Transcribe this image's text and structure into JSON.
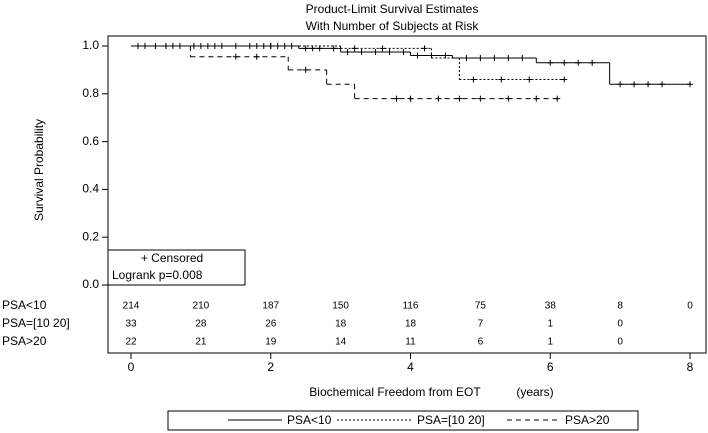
{
  "chart_data": {
    "type": "survival-step",
    "title": "Product-Limit Survival Estimates",
    "subtitle": "With Number of Subjects at Risk",
    "y_label": "Survival Probability",
    "x_label": "Biochemical Freedom from EOT",
    "x_unit": "(years)",
    "xlim": [
      0,
      8
    ],
    "xticks": [
      0,
      2,
      4,
      6,
      8
    ],
    "ylim": [
      0,
      1
    ],
    "yticks": [
      {
        "value": 0,
        "label": "0.0"
      },
      {
        "value": 0.2,
        "label": "0.2"
      },
      {
        "value": 0.4,
        "label": "0.4"
      },
      {
        "value": 0.6,
        "label": "0.6"
      },
      {
        "value": 0.8,
        "label": "0.8"
      },
      {
        "value": 1,
        "label": "1.0"
      }
    ],
    "censor_note": "+ Censored",
    "logrank": "Logrank p=0.008",
    "series": [
      {
        "name": "PSA<10",
        "color": "#000000",
        "style": "solid",
        "x": [
          0,
          2.4,
          3.0,
          4.0,
          4.6,
          5.8,
          6.85
        ],
        "values": [
          1.0,
          0.99,
          0.975,
          0.96,
          0.95,
          0.93,
          0.84
        ],
        "censored": [
          0.1,
          0.2,
          0.35,
          0.5,
          0.7,
          0.9,
          1.0,
          1.1,
          1.3,
          1.5,
          1.7,
          1.8,
          1.9,
          2.0,
          2.1,
          2.2,
          2.3,
          2.5,
          2.6,
          2.7,
          2.9,
          3.1,
          3.3,
          3.5,
          3.7,
          3.9,
          4.1,
          4.3,
          4.5,
          4.8,
          5.0,
          5.2,
          5.4,
          5.6,
          6.0,
          6.2,
          6.4,
          6.6,
          7.0,
          7.2,
          7.4,
          7.6,
          8.0
        ],
        "at_risk": [
          "214",
          "210",
          "187",
          "150",
          "116",
          "75",
          "38",
          "8",
          "0"
        ]
      },
      {
        "name": "PSA=[10 20]",
        "color": "#000000",
        "style": "dotted",
        "x": [
          0,
          3.0,
          4.3,
          4.7
        ],
        "values": [
          1.0,
          0.99,
          0.95,
          0.86
        ],
        "censored": [
          0.5,
          1.2,
          2.0,
          3.2,
          3.6,
          4.2,
          4.9,
          5.3,
          5.7,
          6.2
        ],
        "at_risk": [
          "33",
          "28",
          "26",
          "18",
          "18",
          "7",
          "1",
          "0"
        ]
      },
      {
        "name": "PSA>20",
        "color": "#000000",
        "style": "dashed",
        "x": [
          0,
          0.85,
          2.25,
          2.8,
          3.2
        ],
        "values": [
          1.0,
          0.955,
          0.9,
          0.84,
          0.78
        ],
        "censored": [
          0.6,
          1.5,
          1.8,
          2.5,
          3.8,
          4.0,
          4.4,
          4.7,
          5.0,
          5.4,
          5.8,
          6.1
        ],
        "at_risk": [
          "22",
          "21",
          "19",
          "14",
          "11",
          "6",
          "1",
          "0"
        ]
      }
    ]
  }
}
